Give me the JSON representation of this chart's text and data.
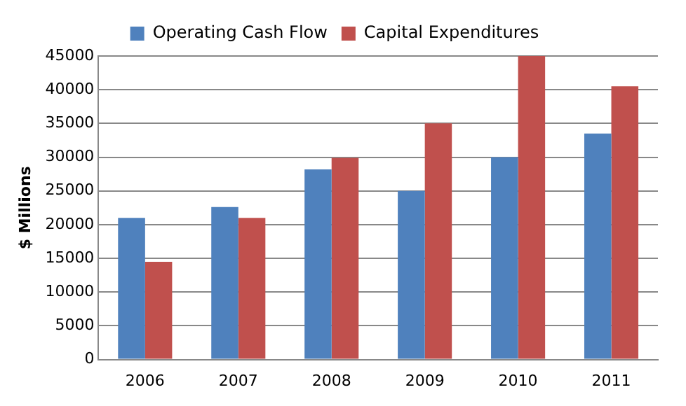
{
  "chart_data": {
    "type": "bar",
    "ylabel": "$ Millions",
    "categories": [
      "2006",
      "2007",
      "2008",
      "2009",
      "2010",
      "2011"
    ],
    "series": [
      {
        "name": "Operating Cash Flow",
        "color": "#4f81bd",
        "values": [
          21000,
          22600,
          28200,
          25000,
          30000,
          33500
        ]
      },
      {
        "name": "Capital Expenditures",
        "color": "#c0504d",
        "values": [
          14500,
          21000,
          29900,
          35000,
          45000,
          40500
        ]
      }
    ],
    "ylim": [
      0,
      45000
    ],
    "yticks": [
      0,
      5000,
      10000,
      15000,
      20000,
      25000,
      30000,
      35000,
      40000,
      45000
    ],
    "grid": "y",
    "legend": "top"
  }
}
